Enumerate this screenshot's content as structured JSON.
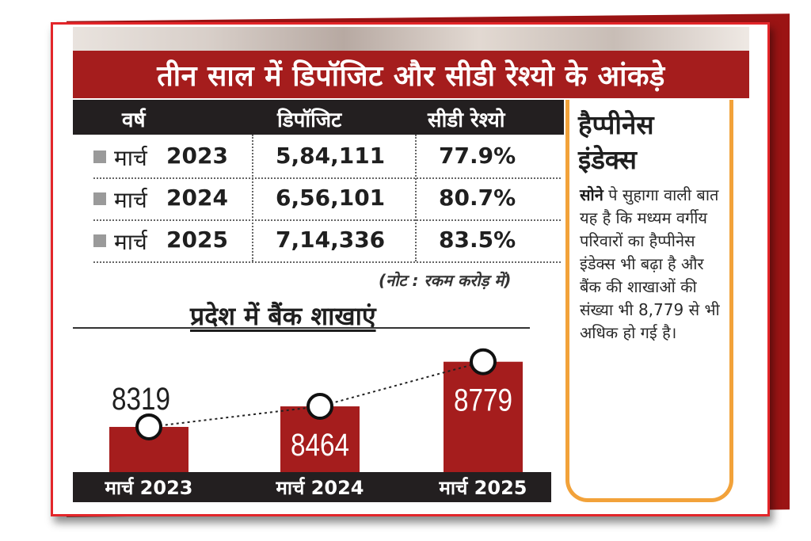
{
  "title": "तीन साल में डिपॉजिट और सीडी रेश्यो के आंकड़े",
  "table": {
    "headers": [
      "वर्ष",
      "डिपॉजिट",
      "सीडी रेश्यो"
    ],
    "rows": [
      {
        "year_word": "मार्च",
        "year_num": "2023",
        "deposit": "5,84,111",
        "cd_ratio": "77.9%"
      },
      {
        "year_word": "मार्च",
        "year_num": "2024",
        "deposit": "6,56,101",
        "cd_ratio": "80.7%"
      },
      {
        "year_word": "मार्च",
        "year_num": "2025",
        "deposit": "7,14,336",
        "cd_ratio": "83.5%"
      }
    ],
    "note": "(नोट : रकम करोड़ में)"
  },
  "chart_data": {
    "type": "bar",
    "title": "प्रदेश में बैंक शाखाएं",
    "categories": [
      "मार्च 2023",
      "मार्च 2024",
      "मार्च 2025"
    ],
    "values": [
      8319,
      8464,
      8779
    ],
    "value_labels": [
      "8319",
      "8464",
      "8779"
    ],
    "ylim": [
      8000,
      8850
    ],
    "bar_color": "#a51d1d",
    "trend_line": "dotted"
  },
  "sidebar": {
    "title_line1": "हैप्पीनेस",
    "title_line2": "इंडेक्स",
    "lead": "सोने",
    "text": "पे सुहागा वाली बात यह है कि मध्यम वर्गीय परिवारों का हैप्पीनेस इंडेक्स भी बढ़ा है और बैंक की शाखाओं की संख्या भी 8,779 से भी अधिक हो गई है।"
  },
  "colors": {
    "accent_red": "#a51d1d",
    "frame_red": "#e3262a",
    "header_dark": "#231f20",
    "sidebar_border": "#f2a23a"
  }
}
